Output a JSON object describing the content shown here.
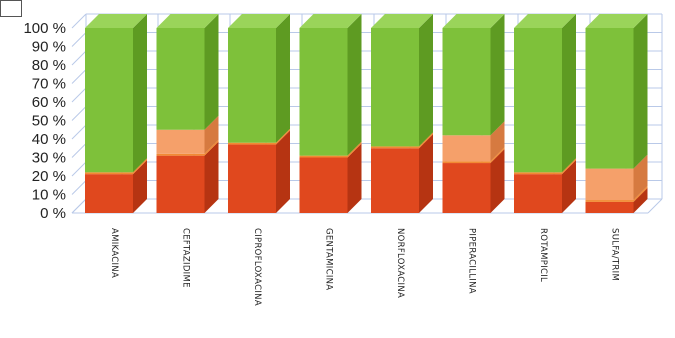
{
  "chart_data": {
    "type": "bar",
    "stacked": true,
    "three_d": true,
    "title": "",
    "xlabel": "",
    "ylabel": "",
    "ylim": [
      0,
      100
    ],
    "y_ticks": [
      "0 %",
      "10 %",
      "20 %",
      "30 %",
      "40 %",
      "50 %",
      "60 %",
      "70 %",
      "80 %",
      "90 %",
      "100 %"
    ],
    "grid": true,
    "categories": [
      "AMIKACINA",
      "CEFTAZIDIME",
      "CIPROFLOXACINA",
      "GENTAMICINA",
      "NORFLOXACINA",
      "PIPERACILLINA",
      "ROTAMPICIL",
      "SULFA/TRIM"
    ],
    "series": [
      {
        "values": [
          21,
          31,
          37,
          30,
          35,
          27,
          21,
          6
        ]
      },
      {
        "values": [
          1,
          1,
          1,
          1,
          1,
          1,
          1,
          1
        ]
      },
      {
        "values": [
          0,
          13,
          0,
          0,
          0,
          14,
          0,
          17
        ]
      },
      {
        "values": [
          78,
          55,
          62,
          69,
          64,
          58,
          78,
          76
        ]
      }
    ],
    "colors": {
      "resistant": "#e0481e",
      "resistant_side": "#b63412",
      "thin": "#f28a33",
      "intermediate": "#f5a06a",
      "intermediate_side": "#d67a40",
      "sensitive": "#7ec13a",
      "sensitive_side": "#5e9b22",
      "sensitive_top": "#9ad45a",
      "grid": "#b9c9e8"
    }
  }
}
